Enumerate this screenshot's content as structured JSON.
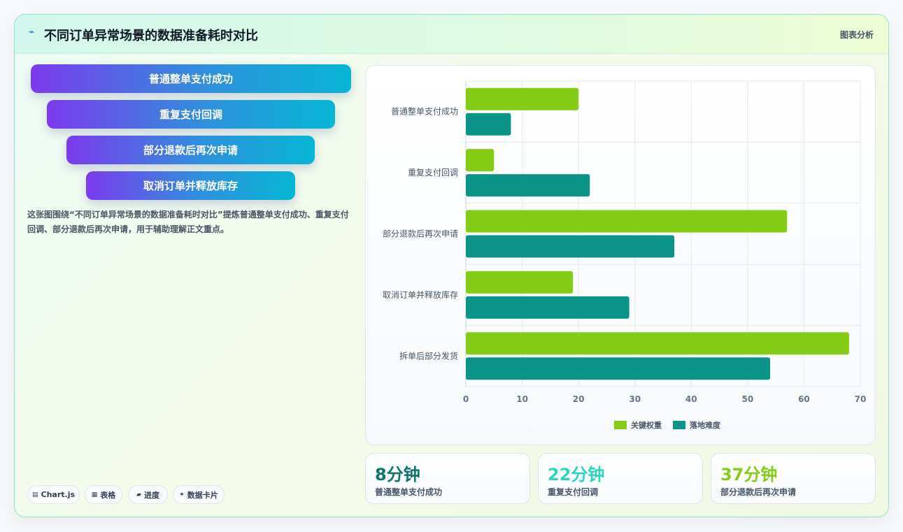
{
  "header": {
    "icon": "chart-line-icon",
    "title": "不同订单异常场景的数据准备耗时对比",
    "tag": "图表分析"
  },
  "funnel": {
    "items": [
      "普通整单支付成功",
      "重复支付回调",
      "部分退款后再次申请",
      "取消订单并释放库存"
    ]
  },
  "description": "这张图围绕“不同订单异常场景的数据准备耗时对比”提炼普通整单支付成功、重复支付回调、部分退款后再次申请，用于辅助理解正文重点。",
  "pills": [
    {
      "icon": "▤",
      "label": "Chart.js"
    },
    {
      "icon": "▦",
      "label": "表格"
    },
    {
      "icon": "▰",
      "label": "进度"
    },
    {
      "icon": "✦",
      "label": "数据卡片"
    }
  ],
  "chart_data": {
    "type": "bar",
    "orientation": "horizontal",
    "categories": [
      "普通整单支付成功",
      "重复支付回调",
      "部分退款后再次申请",
      "取消订单并释放库存",
      "拆单后部分发货"
    ],
    "series": [
      {
        "name": "关键权重",
        "color": "#84cc16",
        "values": [
          20,
          5,
          57,
          19,
          68
        ]
      },
      {
        "name": "落地难度",
        "color": "#0d9488",
        "values": [
          8,
          22,
          37,
          29,
          54
        ]
      }
    ],
    "xlim": [
      0,
      70
    ],
    "xticks": [
      "0",
      "10",
      "20",
      "30",
      "40",
      "50",
      "60",
      "70"
    ],
    "grid": true,
    "legend_position": "bottom"
  },
  "kpis": [
    {
      "value": "8分钟",
      "label": "普通整单支付成功",
      "color": "#0f766e"
    },
    {
      "value": "22分钟",
      "label": "重复支付回调",
      "color": "#2dd4bf"
    },
    {
      "value": "37分钟",
      "label": "部分退款后再次申请",
      "color": "#84cc16"
    }
  ]
}
